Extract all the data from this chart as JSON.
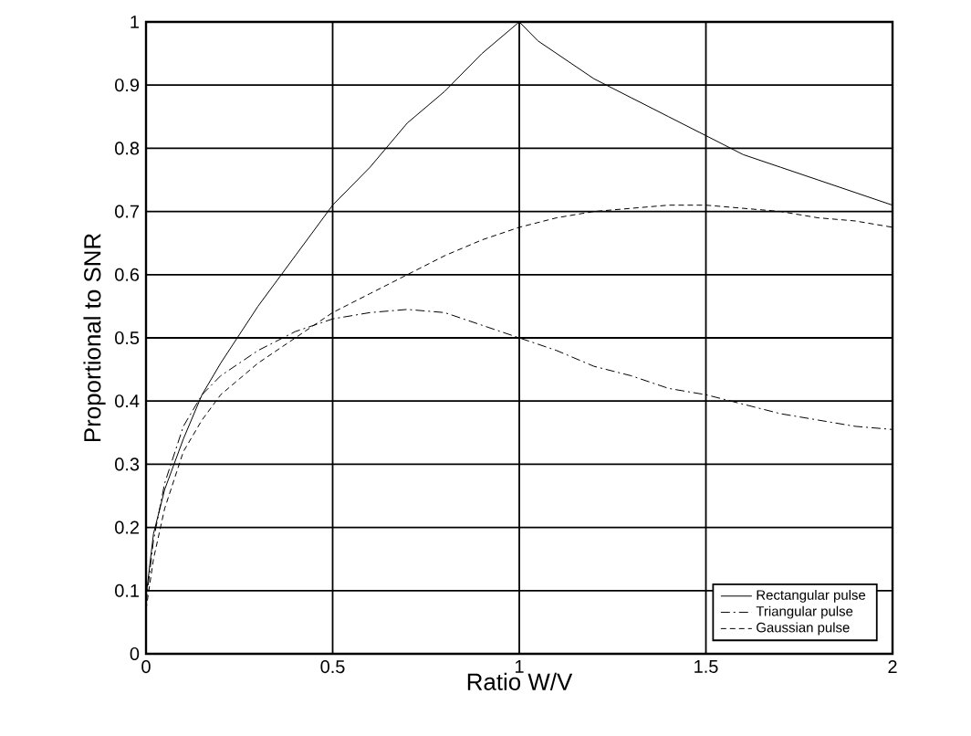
{
  "chart_data": {
    "type": "line",
    "xlabel": "Ratio W/V",
    "ylabel": "Proportional to SNR",
    "xlim": [
      0,
      2
    ],
    "ylim": [
      0,
      1
    ],
    "xticks": [
      0,
      0.5,
      1,
      1.5,
      2
    ],
    "yticks": [
      0,
      0.1,
      0.2,
      0.3,
      0.4,
      0.5,
      0.6,
      0.7,
      0.8,
      0.9,
      1
    ],
    "grid": true,
    "legend": "bottom right",
    "series": [
      {
        "name": "Rectangular pulse",
        "color": "#000000",
        "line_style": "solid",
        "x": [
          0,
          0.02,
          0.05,
          0.1,
          0.15,
          0.2,
          0.3,
          0.4,
          0.5,
          0.6,
          0.7,
          0.8,
          0.9,
          1,
          1.05,
          1.1,
          1.2,
          1.3,
          1.4,
          1.5,
          1.6,
          1.7,
          1.8,
          1.9,
          2
        ],
        "values": [
          0.09,
          0.19,
          0.26,
          0.34,
          0.41,
          0.46,
          0.55,
          0.63,
          0.71,
          0.77,
          0.84,
          0.89,
          0.95,
          1,
          0.97,
          0.95,
          0.91,
          0.88,
          0.85,
          0.82,
          0.79,
          0.77,
          0.75,
          0.73,
          0.71
        ]
      },
      {
        "name": "Triangular pulse",
        "color": "#000000",
        "line_style": "dashdot",
        "x": [
          0,
          0.02,
          0.05,
          0.1,
          0.15,
          0.2,
          0.3,
          0.4,
          0.5,
          0.6,
          0.7,
          0.8,
          0.9,
          1,
          1.1,
          1.2,
          1.3,
          1.4,
          1.5,
          1.6,
          1.7,
          1.8,
          1.9,
          2
        ],
        "values": [
          0.08,
          0.18,
          0.27,
          0.36,
          0.41,
          0.44,
          0.48,
          0.51,
          0.53,
          0.54,
          0.545,
          0.54,
          0.52,
          0.5,
          0.48,
          0.455,
          0.44,
          0.42,
          0.41,
          0.395,
          0.38,
          0.37,
          0.36,
          0.355
        ]
      },
      {
        "name": "Gaussian pulse",
        "color": "#000000",
        "line_style": "dashed",
        "x": [
          0,
          0.02,
          0.05,
          0.1,
          0.15,
          0.2,
          0.3,
          0.4,
          0.5,
          0.6,
          0.7,
          0.8,
          0.9,
          1,
          1.1,
          1.2,
          1.3,
          1.4,
          1.5,
          1.6,
          1.7,
          1.8,
          1.9,
          2
        ],
        "values": [
          0.07,
          0.15,
          0.23,
          0.32,
          0.37,
          0.41,
          0.46,
          0.5,
          0.54,
          0.57,
          0.6,
          0.63,
          0.655,
          0.675,
          0.69,
          0.7,
          0.705,
          0.71,
          0.71,
          0.705,
          0.7,
          0.69,
          0.685,
          0.675
        ]
      }
    ]
  }
}
